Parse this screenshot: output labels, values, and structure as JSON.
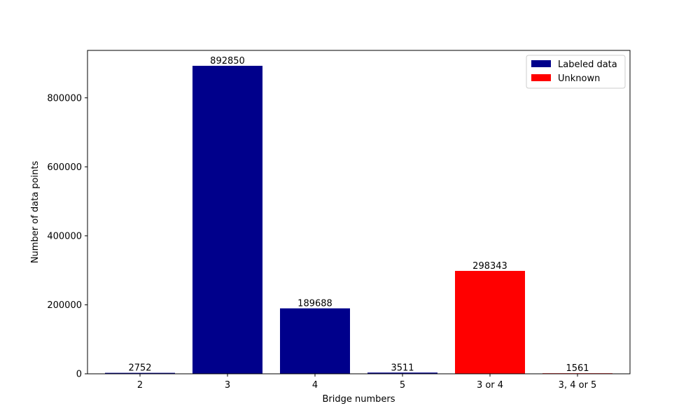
{
  "chart_data": {
    "type": "bar",
    "title": "",
    "xlabel": "Bridge numbers",
    "ylabel": "Number of data points",
    "categories": [
      "2",
      "3",
      "4",
      "5",
      "3 or 4",
      "3, 4 or 5"
    ],
    "values": [
      2752,
      892850,
      189688,
      3511,
      298343,
      1561
    ],
    "groups": [
      "Labeled data",
      "Labeled data",
      "Labeled data",
      "Labeled data",
      "Unknown",
      "Unknown"
    ],
    "series": [
      {
        "name": "Labeled data",
        "color": "#00008b"
      },
      {
        "name": "Unknown",
        "color": "#ff0000"
      }
    ],
    "ylim": [
      0,
      937492
    ],
    "yticks": [
      0,
      200000,
      400000,
      600000,
      800000
    ],
    "ytick_labels": [
      "0",
      "200000",
      "400000",
      "600000",
      "800000"
    ],
    "grid": false,
    "legend_position": "top-right"
  }
}
